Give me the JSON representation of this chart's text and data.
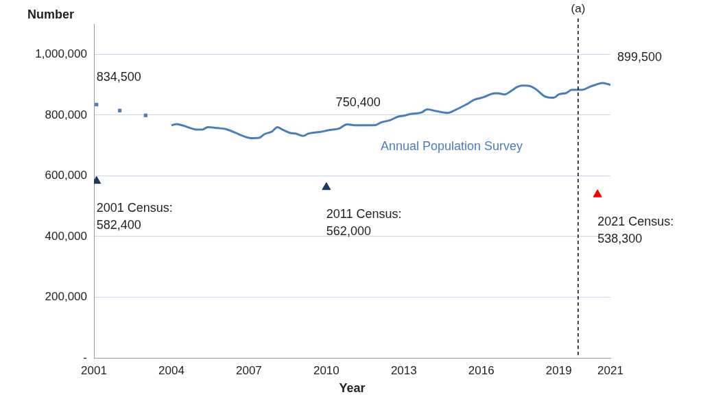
{
  "chart_data": {
    "type": "line",
    "ylabel": "Number",
    "xlabel": "Year",
    "xlim": [
      2001,
      2021
    ],
    "xticks": [
      2001,
      2004,
      2007,
      2010,
      2013,
      2016,
      2019,
      2021
    ],
    "ylim": [
      0,
      1100000
    ],
    "yticks": [
      {
        "value": 0,
        "label": "-"
      },
      {
        "value": 200000,
        "label": "200,000"
      },
      {
        "value": 400000,
        "label": "400,000"
      },
      {
        "value": 600000,
        "label": "600,000"
      },
      {
        "value": 800000,
        "label": "800,000"
      },
      {
        "value": 1000000,
        "label": "1,000,000"
      }
    ],
    "grid": "y",
    "legend": false,
    "series": [
      {
        "name": "Annual Population Survey",
        "color": "#4a7ebb",
        "marker": "none",
        "x": [
          2004.0,
          2004.2,
          2004.5,
          2005.0,
          2005.2,
          2005.4,
          2005.8,
          2006.1,
          2006.5,
          2006.6,
          2007.1,
          2007.4,
          2007.6,
          2007.9,
          2008.1,
          2008.3,
          2008.6,
          2008.8,
          2009.1,
          2009.3,
          2009.6,
          2009.8,
          2010.1,
          2010.5,
          2010.8,
          2011.2,
          2011.9,
          2012.1,
          2012.5,
          2012.75,
          2013.0,
          2013.3,
          2013.7,
          2013.9,
          2014.25,
          2014.7,
          2015.0,
          2015.4,
          2015.75,
          2016.1,
          2016.4,
          2016.6,
          2016.9,
          2017.2,
          2017.4,
          2017.6,
          2017.9,
          2018.1,
          2018.5,
          2018.8,
          2019.0,
          2019.3,
          2019.5,
          2019.9,
          2020.2,
          2020.4,
          2020.7,
          2021.0
        ],
        "values": [
          766000,
          770000,
          764000,
          752000,
          752000,
          760000,
          757000,
          754000,
          741000,
          737000,
          724000,
          725000,
          737000,
          746000,
          760000,
          752000,
          741000,
          739000,
          731000,
          739000,
          743000,
          745000,
          750400,
          756000,
          769000,
          766000,
          767000,
          775000,
          784000,
          794000,
          798000,
          804000,
          809000,
          819000,
          813000,
          807000,
          817000,
          834000,
          851000,
          859000,
          870000,
          872000,
          868000,
          882000,
          893000,
          897000,
          895000,
          886000,
          860000,
          857000,
          868000,
          873000,
          883000,
          883000,
          893000,
          899000,
          906000,
          899500
        ]
      },
      {
        "type": "scatter",
        "color": "#4a7ebb",
        "marker": "square",
        "x": [
          2001.1,
          2002.0,
          2003.0
        ],
        "values": [
          834500,
          815000,
          799000
        ]
      },
      {
        "type": "scatter",
        "colors": [
          "#1f3864",
          "#1f3864",
          "#ff0000"
        ],
        "marker": "triangle",
        "x": [
          2001.1,
          2010.0,
          2020.5
        ],
        "values": [
          582400,
          562000,
          538300
        ]
      }
    ],
    "ref_lines": [
      {
        "axis": "x",
        "value": 2019.75,
        "label": "(a)",
        "color": "#000000",
        "line_style": "dashed"
      }
    ],
    "annotations": [
      {
        "text": "834,500",
        "x": 2001.1,
        "y": 834500
      },
      {
        "text": "750,400",
        "x": 2010.1,
        "y": 750400
      },
      {
        "text": "899,500",
        "x": 2021.0,
        "y": 899500
      },
      {
        "text": "2001 Census:\n582,400",
        "x": 2001.1,
        "y": 582400
      },
      {
        "text": "2011 Census:\n562,000",
        "x": 2010.0,
        "y": 562000
      },
      {
        "text": "2021 Census:\n538,300",
        "x": 2020.5,
        "y": 538300
      }
    ]
  }
}
